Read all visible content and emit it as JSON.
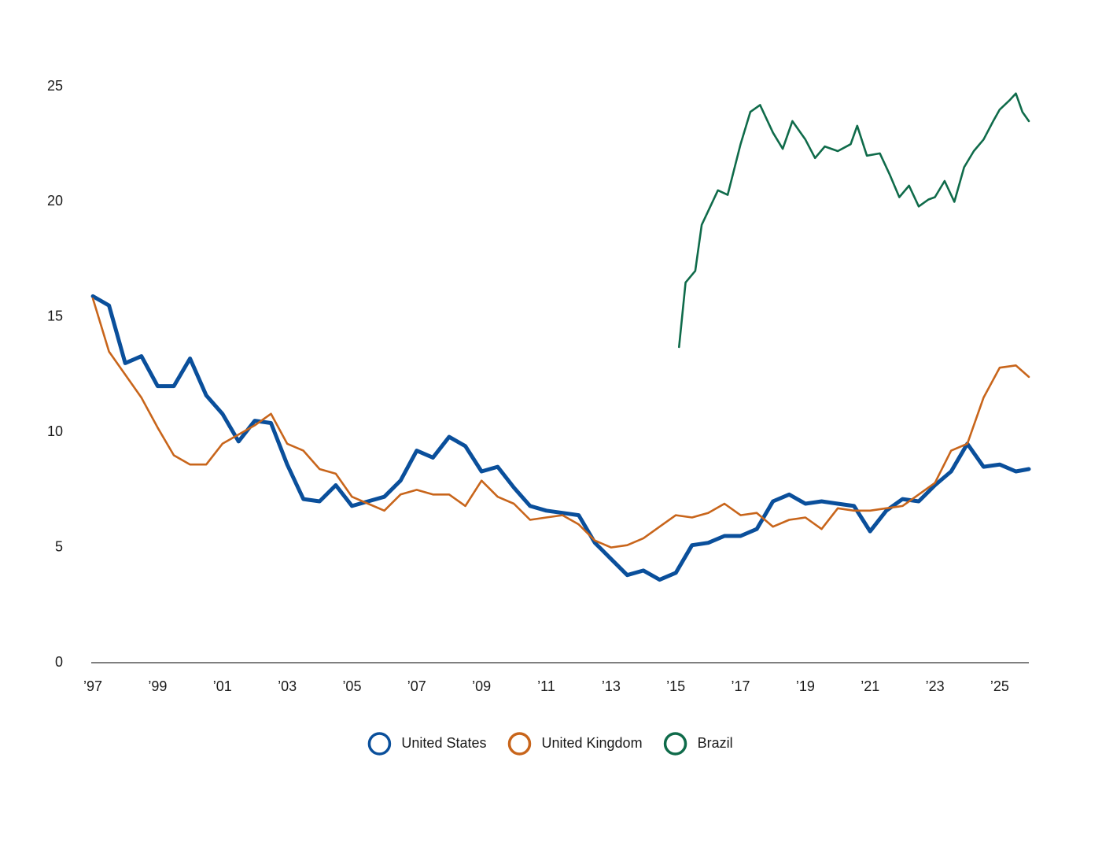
{
  "chart_data": {
    "type": "line",
    "xlim": [
      1996.95,
      2025.9
    ],
    "ylim": [
      0,
      25
    ],
    "yticks": [
      0,
      5,
      10,
      15,
      20,
      25
    ],
    "xticks": [
      {
        "value": 1997,
        "label": "’97"
      },
      {
        "value": 1999,
        "label": "’99"
      },
      {
        "value": 2001,
        "label": "’01"
      },
      {
        "value": 2003,
        "label": "’03"
      },
      {
        "value": 2005,
        "label": "’05"
      },
      {
        "value": 2007,
        "label": "’07"
      },
      {
        "value": 2009,
        "label": "’09"
      },
      {
        "value": 2011,
        "label": "’11"
      },
      {
        "value": 2013,
        "label": "’13"
      },
      {
        "value": 2015,
        "label": "’15"
      },
      {
        "value": 2017,
        "label": "’17"
      },
      {
        "value": 2019,
        "label": "’19"
      },
      {
        "value": 2021,
        "label": "’21"
      },
      {
        "value": 2023,
        "label": "’23"
      },
      {
        "value": 2025,
        "label": "’25"
      }
    ],
    "grid": false,
    "series": [
      {
        "name": "United States",
        "color": "#0a4f9b",
        "x": [
          1997.0,
          1997.5,
          1998.0,
          1998.5,
          1999.0,
          1999.5,
          2000.0,
          2000.5,
          2001.0,
          2001.5,
          2002.0,
          2002.5,
          2003.0,
          2003.5,
          2004.0,
          2004.5,
          2005.0,
          2005.5,
          2006.0,
          2006.5,
          2007.0,
          2007.5,
          2008.0,
          2008.5,
          2009.0,
          2009.5,
          2010.0,
          2010.5,
          2011.0,
          2011.5,
          2012.0,
          2012.5,
          2013.0,
          2013.5,
          2014.0,
          2014.5,
          2015.0,
          2015.5,
          2016.0,
          2016.5,
          2017.0,
          2017.5,
          2018.0,
          2018.5,
          2019.0,
          2019.5,
          2020.0,
          2020.5,
          2021.0,
          2021.5,
          2022.0,
          2022.5,
          2023.0,
          2023.5,
          2024.0,
          2024.5,
          2025.0,
          2025.5,
          2025.9
        ],
        "values": [
          15.9,
          15.5,
          13.0,
          13.3,
          12.0,
          12.0,
          13.2,
          11.6,
          10.8,
          9.6,
          10.5,
          10.4,
          8.6,
          7.1,
          7.0,
          7.7,
          6.8,
          7.0,
          7.2,
          7.9,
          9.2,
          8.9,
          9.8,
          9.4,
          8.3,
          8.5,
          7.6,
          6.8,
          6.6,
          6.5,
          6.4,
          5.2,
          4.5,
          3.8,
          4.0,
          3.6,
          3.9,
          5.1,
          5.2,
          5.5,
          5.5,
          5.8,
          7.0,
          7.3,
          6.9,
          7.0,
          6.9,
          6.8,
          5.7,
          6.6,
          7.1,
          7.0,
          7.7,
          8.3,
          9.5,
          8.5,
          8.6,
          8.3,
          8.4
        ]
      },
      {
        "name": "United Kingdom",
        "color": "#c8651b",
        "x": [
          1997.0,
          1997.5,
          1998.0,
          1998.5,
          1999.0,
          1999.5,
          2000.0,
          2000.5,
          2001.0,
          2001.5,
          2002.0,
          2002.5,
          2003.0,
          2003.5,
          2004.0,
          2004.5,
          2005.0,
          2005.5,
          2006.0,
          2006.5,
          2007.0,
          2007.5,
          2008.0,
          2008.5,
          2009.0,
          2009.5,
          2010.0,
          2010.5,
          2011.0,
          2011.5,
          2012.0,
          2012.5,
          2013.0,
          2013.5,
          2014.0,
          2014.5,
          2015.0,
          2015.5,
          2016.0,
          2016.5,
          2017.0,
          2017.5,
          2018.0,
          2018.5,
          2019.0,
          2019.5,
          2020.0,
          2020.5,
          2021.0,
          2021.5,
          2022.0,
          2022.5,
          2023.0,
          2023.5,
          2024.0,
          2024.5,
          2025.0,
          2025.5,
          2025.9
        ],
        "values": [
          15.8,
          13.5,
          12.5,
          11.5,
          10.2,
          9.0,
          8.6,
          8.6,
          9.5,
          9.9,
          10.3,
          10.8,
          9.5,
          9.2,
          8.4,
          8.2,
          7.2,
          6.9,
          6.6,
          7.3,
          7.5,
          7.3,
          7.3,
          6.8,
          7.9,
          7.2,
          6.9,
          6.2,
          6.3,
          6.4,
          6.0,
          5.3,
          5.0,
          5.1,
          5.4,
          5.9,
          6.4,
          6.3,
          6.5,
          6.9,
          6.4,
          6.5,
          5.9,
          6.2,
          6.3,
          5.8,
          6.7,
          6.6,
          6.6,
          6.7,
          6.8,
          7.3,
          7.8,
          9.2,
          9.5,
          11.5,
          12.8,
          12.9,
          12.4
        ]
      },
      {
        "name": "Brazil",
        "color": "#0f6b4a",
        "x": [
          2015.1,
          2015.3,
          2015.6,
          2015.8,
          2016.0,
          2016.3,
          2016.6,
          2017.0,
          2017.3,
          2017.6,
          2018.0,
          2018.3,
          2018.6,
          2019.0,
          2019.3,
          2019.6,
          2020.0,
          2020.4,
          2020.6,
          2020.9,
          2021.3,
          2021.6,
          2021.9,
          2022.2,
          2022.5,
          2022.8,
          2023.0,
          2023.3,
          2023.6,
          2023.9,
          2024.2,
          2024.5,
          2024.8,
          2025.0,
          2025.3,
          2025.5,
          2025.7,
          2025.9
        ],
        "values": [
          13.7,
          16.5,
          17.0,
          19.0,
          19.6,
          20.5,
          20.3,
          22.5,
          23.9,
          24.2,
          23.0,
          22.3,
          23.5,
          22.7,
          21.9,
          22.4,
          22.2,
          22.5,
          23.3,
          22.0,
          22.1,
          21.2,
          20.2,
          20.7,
          19.8,
          20.1,
          20.2,
          20.9,
          20.0,
          21.5,
          22.2,
          22.7,
          23.5,
          24.0,
          24.4,
          24.7,
          23.9,
          23.5
        ]
      }
    ]
  }
}
